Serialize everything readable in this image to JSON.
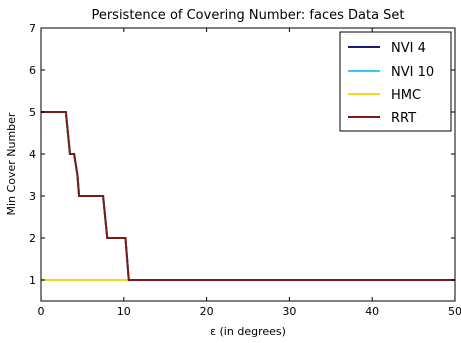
{
  "chart_data": {
    "type": "line",
    "title": "Persistence of Covering Number: faces Data Set",
    "xlabel": "ε (in degrees)",
    "ylabel": "Min Cover Number",
    "xlim": [
      0,
      50
    ],
    "ylim": [
      0.5,
      7
    ],
    "xticks": [
      0,
      10,
      20,
      30,
      40,
      50
    ],
    "yticks": [
      1,
      2,
      3,
      4,
      5,
      6,
      7
    ],
    "grid": false,
    "legend_position": "top-right",
    "series": [
      {
        "name": "NVI 4",
        "color": "#1a1a7a",
        "x": [
          0,
          3,
          3.5,
          4,
          4.4,
          4.6,
          7.5,
          8,
          10.2,
          10.6,
          50
        ],
        "y": [
          5,
          5,
          4,
          4,
          3.5,
          3,
          3,
          2,
          2,
          1,
          1
        ]
      },
      {
        "name": "NVI 10",
        "color": "#33ccee",
        "x": [
          0,
          3,
          3.5,
          4,
          4.4,
          4.6,
          7.5,
          8,
          10.2,
          10.6,
          50
        ],
        "y": [
          5,
          5,
          4,
          4,
          3.5,
          3,
          3,
          2,
          2,
          1,
          1
        ]
      },
      {
        "name": "HMC",
        "color": "#f0dc1e",
        "x": [
          0,
          50
        ],
        "y": [
          1,
          1
        ]
      },
      {
        "name": "RRT",
        "color": "#7a1c14",
        "x": [
          0,
          3,
          3.5,
          4,
          4.4,
          4.6,
          7.5,
          8,
          10.2,
          10.6,
          50
        ],
        "y": [
          5,
          5,
          4,
          4,
          3.5,
          3,
          3,
          2,
          2,
          1,
          1
        ]
      }
    ]
  }
}
